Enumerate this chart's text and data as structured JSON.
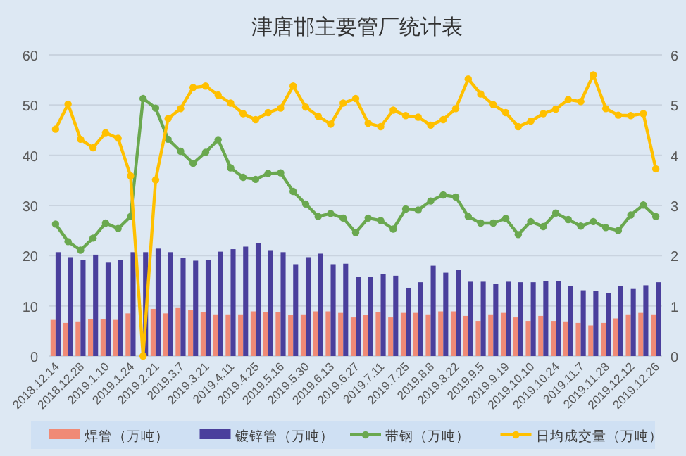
{
  "chart_data": {
    "type": "bar",
    "title": "津唐邯主要管厂统计表",
    "categories": [
      "2018.12.14",
      null,
      "2018.12.28",
      null,
      "2019.1.10",
      null,
      "2019.1.24",
      null,
      "2019.2.21",
      null,
      "2019.3.7",
      null,
      "2019.3.21",
      null,
      "2019.4.11",
      null,
      "2019.4.25",
      null,
      "2019.5.16",
      null,
      "2019.5.30",
      null,
      "2019.6.13",
      null,
      "2019.6.27",
      null,
      "2019.7.11",
      null,
      "2019.7.25",
      null,
      "2019.8.8",
      null,
      "2019.8.22",
      null,
      "2019.9.5",
      null,
      "2019.9.19",
      null,
      "2019.10.10",
      null,
      "2019.10.24",
      null,
      "2019.11.7",
      null,
      "2019.11.28",
      null,
      "2019.12.12",
      null,
      "2019.12.26"
    ],
    "series": [
      {
        "name": "焊管（万吨）",
        "color": "#f08a76",
        "values": [
          7.2,
          6.6,
          6.9,
          7.4,
          7.4,
          7.2,
          8.5,
          null,
          9.4,
          8.5,
          9.7,
          9.2,
          8.7,
          8.3,
          8.3,
          8.3,
          8.9,
          8.7,
          8.7,
          8.2,
          8.3,
          8.9,
          8.9,
          8.6,
          7.7,
          8.2,
          8.7,
          7.7,
          8.6,
          8.6,
          8.3,
          8.9,
          8.9,
          8.0,
          7.0,
          8.3,
          8.6,
          7.7,
          7.0,
          8.0,
          7.0,
          6.9,
          6.6,
          6.1,
          6.6,
          7.5,
          8.3,
          8.6,
          8.3
        ]
      },
      {
        "name": "镀锌管（万吨）",
        "color": "#4a3f9c",
        "values": [
          20.7,
          19.7,
          19.1,
          20.2,
          18.6,
          19.1,
          20.7,
          20.7,
          21.4,
          20.7,
          19.5,
          19.0,
          19.2,
          20.8,
          21.3,
          21.8,
          22.5,
          21.1,
          20.7,
          18.3,
          19.7,
          20.4,
          18.3,
          18.4,
          15.7,
          15.7,
          16.3,
          16.0,
          13.6,
          14.7,
          18.0,
          16.6,
          17.2,
          14.8,
          14.8,
          14.3,
          14.8,
          14.7,
          14.7,
          15.0,
          15.0,
          13.9,
          13.1,
          12.9,
          12.6,
          13.9,
          13.5,
          14.1,
          14.7
        ]
      },
      {
        "name": "带钢（万吨）",
        "type": "line",
        "color": "#6aa84f",
        "values": [
          26.3,
          22.8,
          21.1,
          23.5,
          26.5,
          25.4,
          27.8,
          51.3,
          49.4,
          43.2,
          40.8,
          38.4,
          40.6,
          43.1,
          37.5,
          35.6,
          35.2,
          36.4,
          36.5,
          32.8,
          30.3,
          27.8,
          28.4,
          27.5,
          24.6,
          27.5,
          27.0,
          25.3,
          29.3,
          29.1,
          30.9,
          32.1,
          31.7,
          27.8,
          26.5,
          26.5,
          27.4,
          24.2,
          26.8,
          25.8,
          28.5,
          27.2,
          25.9,
          26.8,
          25.6,
          25.0,
          28.1,
          30.1,
          27.8
        ]
      },
      {
        "name": "日均成交量（万吨）",
        "type": "line",
        "axis": "y2",
        "color": "#ffc000",
        "values": [
          4.52,
          5.02,
          4.32,
          4.15,
          4.45,
          4.34,
          3.59,
          0,
          3.51,
          4.73,
          4.93,
          5.35,
          5.38,
          5.2,
          5.04,
          4.83,
          4.71,
          4.85,
          4.94,
          5.38,
          4.96,
          4.78,
          4.62,
          5.04,
          5.13,
          4.64,
          4.57,
          4.9,
          4.79,
          4.76,
          4.6,
          4.71,
          4.93,
          5.52,
          5.22,
          5.01,
          4.85,
          4.57,
          4.68,
          4.83,
          4.92,
          5.11,
          5.07,
          5.6,
          4.93,
          4.8,
          4.79,
          4.83,
          3.73
        ]
      }
    ],
    "ylim": [
      0,
      60
    ],
    "yticks": [
      0,
      10,
      20,
      30,
      40,
      50,
      60
    ],
    "y2lim": [
      0,
      6
    ],
    "y2ticks": [
      0,
      1,
      2,
      3,
      4,
      5,
      6
    ],
    "grid": "y",
    "legend": "bottom",
    "marker": "circle",
    "line_style": "solid"
  }
}
